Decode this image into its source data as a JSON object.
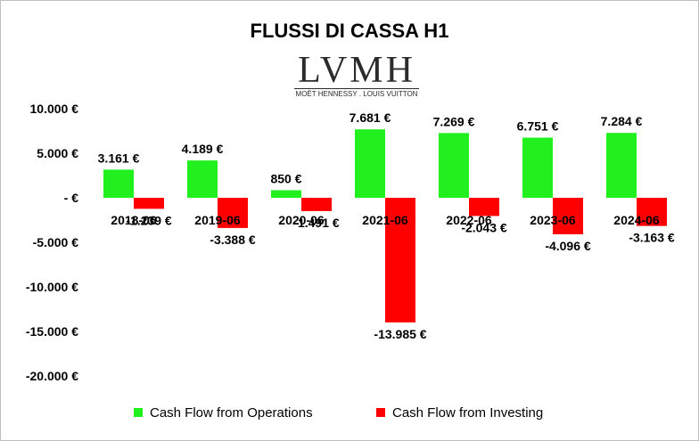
{
  "title": "FLUSSI DI CASSA H1",
  "logo": {
    "main": "LVMH",
    "sub": "MOËT HENNESSY . LOUIS VUITTON"
  },
  "colors": {
    "operations": "#21f01e",
    "investing": "#ff0000",
    "text": "#000000"
  },
  "chart_data": {
    "type": "bar",
    "categories": [
      "2018-06",
      "2019-06",
      "2020-06",
      "2021-06",
      "2022-06",
      "2023-06",
      "2024-06"
    ],
    "series": [
      {
        "name": "Cash Flow from Operations",
        "values": [
          3161,
          4189,
          850,
          7681,
          7269,
          6751,
          7284
        ],
        "labels": [
          "3.161 €",
          "4.189 €",
          "850 €",
          "7.681 €",
          "7.269 €",
          "6.751 €",
          "7.284 €"
        ]
      },
      {
        "name": "Cash Flow from Investing",
        "values": [
          -1239,
          -3388,
          -1491,
          -13985,
          -2043,
          -4096,
          -3163
        ],
        "labels": [
          "-1.239 €",
          "-3.388 €",
          "-1.491 €",
          "-13.985 €",
          "-2.043 €",
          "-4.096 €",
          "-3.163 €"
        ]
      }
    ],
    "yticks": [
      10000,
      5000,
      0,
      -5000,
      -10000,
      -15000,
      -20000
    ],
    "ytick_labels": [
      "10.000 €",
      "5.000 €",
      "-   €",
      "-5.000 €",
      "-10.000 €",
      "-15.000 €",
      "-20.000 €"
    ],
    "ylim": [
      -20000,
      10000
    ],
    "legend": "bottom",
    "grid": false
  }
}
